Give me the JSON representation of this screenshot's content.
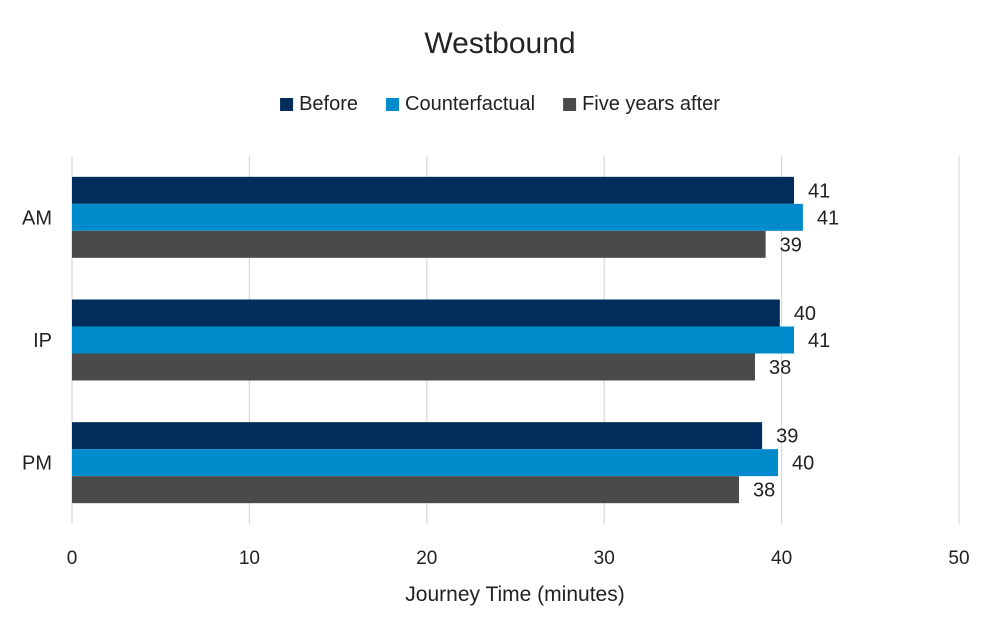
{
  "chart_data": {
    "type": "bar",
    "orientation": "horizontal",
    "title": "Westbound",
    "xlabel": "Journey Time (minutes)",
    "ylabel": "",
    "xlim": [
      0,
      50
    ],
    "x_ticks": [
      0,
      10,
      20,
      30,
      40,
      50
    ],
    "grid": true,
    "legend_position": "top",
    "categories": [
      "AM",
      "IP",
      "PM"
    ],
    "series": [
      {
        "name": "Before",
        "color": "#002d5c",
        "values": [
          40.7,
          39.9,
          38.9
        ],
        "labels": [
          "41",
          "40",
          "39"
        ]
      },
      {
        "name": "Counterfactual",
        "color": "#008bcc",
        "values": [
          41.2,
          40.7,
          39.8
        ],
        "labels": [
          "41",
          "41",
          "40"
        ]
      },
      {
        "name": "Five years after",
        "color": "#4a4a4a",
        "values": [
          39.1,
          38.5,
          37.6
        ],
        "labels": [
          "39",
          "38",
          "38"
        ]
      }
    ]
  }
}
